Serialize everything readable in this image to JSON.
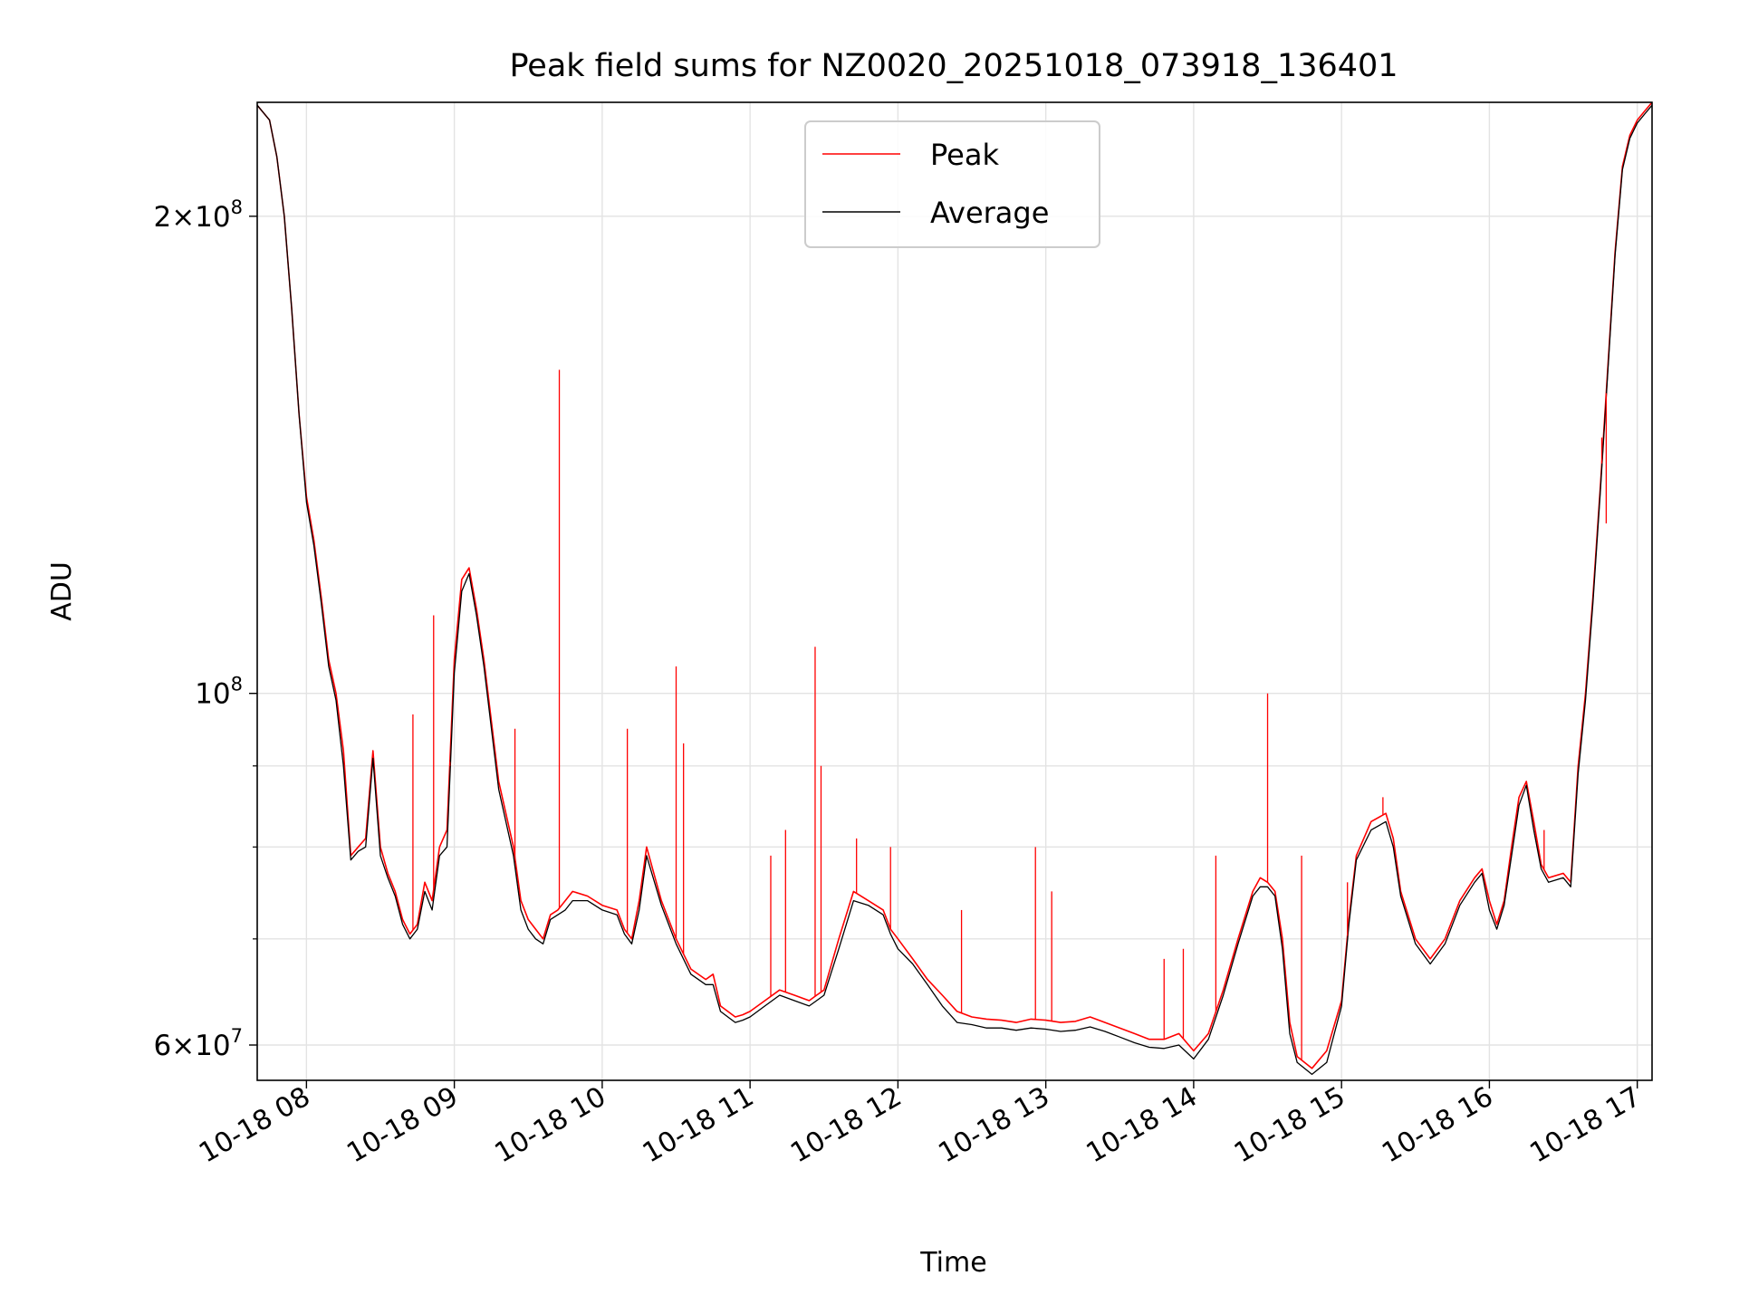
{
  "chart_data": {
    "type": "line",
    "title": "Peak field sums for NZ0020_20251018_073918_136401",
    "xlabel": "Time",
    "ylabel": "ADU",
    "yscale": "log",
    "ylim": [
      57000000,
      236000000
    ],
    "xlim_hours": [
      7.667,
      17.1
    ],
    "grid": true,
    "legend_position": "upper-center",
    "x_ticks": [
      {
        "hour": 8,
        "label": "10-18 08"
      },
      {
        "hour": 9,
        "label": "10-18 09"
      },
      {
        "hour": 10,
        "label": "10-18 10"
      },
      {
        "hour": 11,
        "label": "10-18 11"
      },
      {
        "hour": 12,
        "label": "10-18 12"
      },
      {
        "hour": 13,
        "label": "10-18 13"
      },
      {
        "hour": 14,
        "label": "10-18 14"
      },
      {
        "hour": 15,
        "label": "10-18 15"
      },
      {
        "hour": 16,
        "label": "10-18 16"
      },
      {
        "hour": 17,
        "label": "10-18 17"
      }
    ],
    "y_major_ticks": [
      {
        "value": 60000000,
        "mantissa": "6",
        "exponent": "7",
        "label": "6×10^7"
      },
      {
        "value": 100000000,
        "mantissa": "",
        "exponent": "8",
        "label": "10^8"
      },
      {
        "value": 200000000,
        "mantissa": "2",
        "exponent": "8",
        "label": "2×10^8"
      }
    ],
    "y_minor_ticks": [
      70000000,
      80000000,
      90000000
    ],
    "series": [
      {
        "name": "Peak",
        "color": "#ff0000",
        "x_hours": [
          7.667,
          7.75,
          7.8,
          7.85,
          7.9,
          7.95,
          8.0,
          8.05,
          8.1,
          8.15,
          8.2,
          8.25,
          8.3,
          8.35,
          8.4,
          8.45,
          8.5,
          8.55,
          8.6,
          8.65,
          8.7,
          8.75,
          8.8,
          8.85,
          8.9,
          8.95,
          9.0,
          9.05,
          9.1,
          9.15,
          9.2,
          9.3,
          9.4,
          9.45,
          9.5,
          9.55,
          9.6,
          9.65,
          9.7,
          9.75,
          9.8,
          9.9,
          10.0,
          10.1,
          10.15,
          10.2,
          10.25,
          10.3,
          10.4,
          10.5,
          10.6,
          10.7,
          10.75,
          10.8,
          10.85,
          10.9,
          10.95,
          11.0,
          11.1,
          11.2,
          11.3,
          11.4,
          11.45,
          11.5,
          11.6,
          11.7,
          11.8,
          11.9,
          11.95,
          12.0,
          12.1,
          12.2,
          12.3,
          12.4,
          12.5,
          12.6,
          12.7,
          12.8,
          12.9,
          13.0,
          13.1,
          13.2,
          13.3,
          13.4,
          13.5,
          13.6,
          13.7,
          13.8,
          13.9,
          14.0,
          14.1,
          14.2,
          14.3,
          14.4,
          14.45,
          14.5,
          14.55,
          14.6,
          14.65,
          14.7,
          14.8,
          14.9,
          15.0,
          15.05,
          15.1,
          15.2,
          15.3,
          15.35,
          15.4,
          15.5,
          15.6,
          15.7,
          15.8,
          15.9,
          15.95,
          16.0,
          16.05,
          16.1,
          16.15,
          16.2,
          16.25,
          16.3,
          16.35,
          16.4,
          16.5,
          16.55,
          16.6,
          16.65,
          16.7,
          16.75,
          16.8,
          16.85,
          16.9,
          16.95,
          17.0,
          17.05,
          17.1
        ],
        "values": [
          235000000,
          230000000,
          218000000,
          200000000,
          175000000,
          150000000,
          133000000,
          125000000,
          115000000,
          105000000,
          100000000,
          92000000,
          79000000,
          80000000,
          81000000,
          92000000,
          80000000,
          77000000,
          75000000,
          72000000,
          70500000,
          71500000,
          76000000,
          74000000,
          80000000,
          82000000,
          105000000,
          118000000,
          120000000,
          113000000,
          105000000,
          88000000,
          80000000,
          74000000,
          72000000,
          71000000,
          70000000,
          72500000,
          73000000,
          74000000,
          75000000,
          74500000,
          73500000,
          73000000,
          71000000,
          70000000,
          74000000,
          80000000,
          74000000,
          70000000,
          67000000,
          66000000,
          66500000,
          63500000,
          63000000,
          62500000,
          62700000,
          63000000,
          64000000,
          65000000,
          64500000,
          64000000,
          64500000,
          65000000,
          70000000,
          75000000,
          74000000,
          73000000,
          71000000,
          70000000,
          68000000,
          66000000,
          64500000,
          63000000,
          62500000,
          62300000,
          62200000,
          62000000,
          62300000,
          62200000,
          62000000,
          62100000,
          62500000,
          62000000,
          61500000,
          61000000,
          60500000,
          60500000,
          61000000,
          59500000,
          61000000,
          65000000,
          70000000,
          75000000,
          76500000,
          76000000,
          75000000,
          70000000,
          62000000,
          59000000,
          58000000,
          59500000,
          64000000,
          72000000,
          79000000,
          83000000,
          84000000,
          81000000,
          75000000,
          70000000,
          68000000,
          70000000,
          74000000,
          76500000,
          77500000,
          74000000,
          71500000,
          74000000,
          80000000,
          86000000,
          88000000,
          83000000,
          78000000,
          76500000,
          77000000,
          76000000,
          90000000,
          100000000,
          115000000,
          135000000,
          160000000,
          190000000,
          215000000,
          225000000,
          230000000,
          233000000,
          236000000
        ]
      },
      {
        "name": "Average",
        "color": "#000000",
        "x_hours": [
          7.667,
          7.75,
          7.8,
          7.85,
          7.9,
          7.95,
          8.0,
          8.05,
          8.1,
          8.15,
          8.2,
          8.25,
          8.3,
          8.35,
          8.4,
          8.45,
          8.5,
          8.55,
          8.6,
          8.65,
          8.7,
          8.75,
          8.8,
          8.85,
          8.9,
          8.95,
          9.0,
          9.05,
          9.1,
          9.15,
          9.2,
          9.3,
          9.4,
          9.45,
          9.5,
          9.55,
          9.6,
          9.65,
          9.7,
          9.75,
          9.8,
          9.9,
          10.0,
          10.1,
          10.15,
          10.2,
          10.25,
          10.3,
          10.4,
          10.5,
          10.6,
          10.7,
          10.75,
          10.8,
          10.85,
          10.9,
          10.95,
          11.0,
          11.1,
          11.2,
          11.3,
          11.4,
          11.45,
          11.5,
          11.6,
          11.7,
          11.8,
          11.9,
          11.95,
          12.0,
          12.1,
          12.2,
          12.3,
          12.4,
          12.5,
          12.6,
          12.7,
          12.8,
          12.9,
          13.0,
          13.1,
          13.2,
          13.3,
          13.4,
          13.5,
          13.6,
          13.7,
          13.8,
          13.9,
          14.0,
          14.1,
          14.2,
          14.3,
          14.4,
          14.45,
          14.5,
          14.55,
          14.6,
          14.65,
          14.7,
          14.8,
          14.9,
          15.0,
          15.05,
          15.1,
          15.2,
          15.3,
          15.35,
          15.4,
          15.5,
          15.6,
          15.7,
          15.8,
          15.9,
          15.95,
          16.0,
          16.05,
          16.1,
          16.15,
          16.2,
          16.25,
          16.3,
          16.35,
          16.4,
          16.5,
          16.55,
          16.6,
          16.65,
          16.7,
          16.75,
          16.8,
          16.85,
          16.9,
          16.95,
          17.0,
          17.05,
          17.1
        ],
        "values": [
          235000000,
          230000000,
          218000000,
          200000000,
          175000000,
          150000000,
          132000000,
          124000000,
          114000000,
          104000000,
          99000000,
          90000000,
          78500000,
          79500000,
          80000000,
          91000000,
          79000000,
          76500000,
          74500000,
          71500000,
          70000000,
          71000000,
          75000000,
          73000000,
          79000000,
          80000000,
          103000000,
          116000000,
          119000000,
          112000000,
          104000000,
          87000000,
          79000000,
          73000000,
          71000000,
          70000000,
          69500000,
          72000000,
          72500000,
          73000000,
          74000000,
          74000000,
          73000000,
          72500000,
          70500000,
          69500000,
          73000000,
          79000000,
          73500000,
          69500000,
          66500000,
          65500000,
          65500000,
          63000000,
          62500000,
          62000000,
          62200000,
          62500000,
          63500000,
          64500000,
          64000000,
          63500000,
          64000000,
          64500000,
          69000000,
          74000000,
          73500000,
          72500000,
          70500000,
          69000000,
          67500000,
          65500000,
          63500000,
          62000000,
          61800000,
          61500000,
          61500000,
          61300000,
          61500000,
          61400000,
          61200000,
          61300000,
          61600000,
          61200000,
          60700000,
          60200000,
          59800000,
          59700000,
          60000000,
          58800000,
          60500000,
          64500000,
          69500000,
          74500000,
          75500000,
          75500000,
          74500000,
          69000000,
          61000000,
          58500000,
          57500000,
          58500000,
          63500000,
          71500000,
          78500000,
          82000000,
          83000000,
          80000000,
          74500000,
          69500000,
          67500000,
          69500000,
          73500000,
          76000000,
          77000000,
          73000000,
          71000000,
          73500000,
          79000000,
          85000000,
          87500000,
          82000000,
          77500000,
          76000000,
          76500000,
          75500000,
          89000000,
          99000000,
          114000000,
          134000000,
          159000000,
          189000000,
          214000000,
          224000000,
          229000000,
          232000000,
          235000000
        ]
      }
    ],
    "spikes": {
      "series": "Peak",
      "color": "#ff0000",
      "x_hours": [
        8.72,
        8.86,
        8.97,
        9.41,
        9.71,
        10.17,
        10.5,
        10.55,
        11.14,
        11.24,
        11.44,
        11.48,
        11.72,
        11.95,
        12.43,
        12.93,
        13.04,
        13.8,
        13.93,
        14.15,
        14.5,
        14.73,
        15.04,
        15.28,
        16.37,
        16.76,
        16.79
      ],
      "values": [
        97000000,
        112000000,
        90000000,
        95000000,
        160000000,
        95000000,
        104000000,
        93000000,
        79000000,
        82000000,
        107000000,
        90000000,
        81000000,
        80000000,
        73000000,
        80000000,
        75000000,
        68000000,
        69000000,
        79000000,
        100000000,
        79000000,
        76000000,
        86000000,
        82000000,
        145000000,
        128000000
      ]
    }
  }
}
